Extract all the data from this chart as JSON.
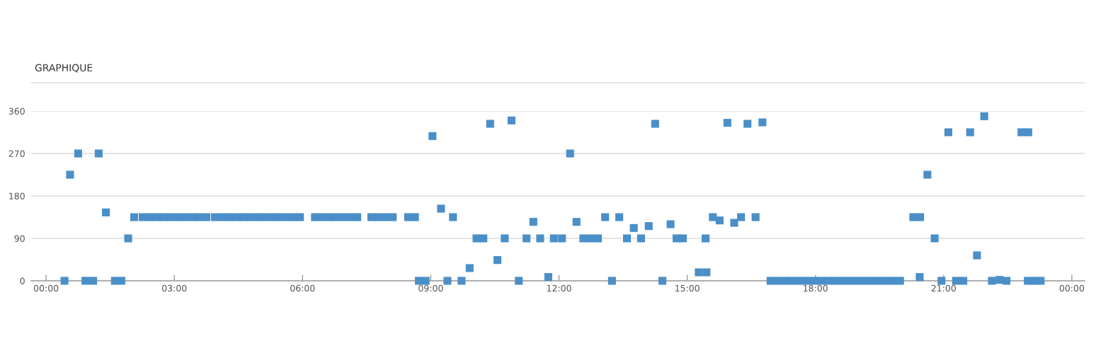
{
  "chart_data": {
    "type": "scatter",
    "title": "GRAPHIQUE",
    "x": [
      0.43,
      0.56,
      0.75,
      0.92,
      1.1,
      1.23,
      1.4,
      1.61,
      1.76,
      1.92,
      2.06,
      2.26,
      2.42,
      2.59,
      2.75,
      2.92,
      3.09,
      3.25,
      3.42,
      3.58,
      3.75,
      3.95,
      4.12,
      4.28,
      4.45,
      4.62,
      4.78,
      4.95,
      5.11,
      5.28,
      5.44,
      5.61,
      5.78,
      5.94,
      6.29,
      6.45,
      6.62,
      6.78,
      6.95,
      7.12,
      7.28,
      7.61,
      7.77,
      7.94,
      8.11,
      8.47,
      8.63,
      8.72,
      8.88,
      9.04,
      9.24,
      9.39,
      9.52,
      9.72,
      9.91,
      10.07,
      10.23,
      10.39,
      10.56,
      10.73,
      10.89,
      11.06,
      11.24,
      11.4,
      11.56,
      11.75,
      11.88,
      12.07,
      12.26,
      12.41,
      12.57,
      12.74,
      12.91,
      13.08,
      13.24,
      13.41,
      13.59,
      13.75,
      13.92,
      14.1,
      14.25,
      14.42,
      14.61,
      14.75,
      14.9,
      15.27,
      15.43,
      15.45,
      15.6,
      15.76,
      15.94,
      16.1,
      16.26,
      16.41,
      16.6,
      16.76,
      16.95,
      17.12,
      17.29,
      17.45,
      17.62,
      17.79,
      17.96,
      18.13,
      18.29,
      18.46,
      18.63,
      18.8,
      18.97,
      19.14,
      19.31,
      19.47,
      19.64,
      19.81,
      19.98,
      20.29,
      20.44,
      20.45,
      20.62,
      20.79,
      20.95,
      21.11,
      21.29,
      21.46,
      21.62,
      21.78,
      21.95,
      22.13,
      22.31,
      22.47,
      22.82,
      22.97,
      22.98,
      23.13,
      23.27
    ],
    "values": [
      0,
      225,
      270,
      0,
      0,
      270,
      145,
      0,
      0,
      90,
      135,
      135,
      135,
      135,
      135,
      135,
      135,
      135,
      135,
      135,
      135,
      135,
      135,
      135,
      135,
      135,
      135,
      135,
      135,
      135,
      135,
      135,
      135,
      135,
      135,
      135,
      135,
      135,
      135,
      135,
      135,
      135,
      135,
      135,
      135,
      135,
      135,
      0,
      0,
      307,
      153,
      0,
      135,
      0,
      27,
      90,
      90,
      333,
      44,
      90,
      340,
      0,
      90,
      125,
      90,
      8,
      90,
      90,
      270,
      125,
      90,
      90,
      90,
      135,
      0,
      135,
      90,
      112,
      90,
      116,
      333,
      0,
      120,
      90,
      90,
      18,
      90,
      18,
      135,
      128,
      335,
      123,
      135,
      333,
      135,
      336,
      0,
      0,
      0,
      0,
      0,
      0,
      0,
      0,
      0,
      0,
      0,
      0,
      0,
      0,
      0,
      0,
      0,
      0,
      0,
      135,
      8,
      135,
      225,
      90,
      0,
      315,
      0,
      0,
      315,
      54,
      349,
      0,
      2,
      0,
      315,
      0,
      315,
      0,
      0
    ],
    "color": "#4a8fc8",
    "marker": "square",
    "xlim": [
      -0.35,
      24.3
    ],
    "ylim": [
      0,
      360
    ],
    "xticks": [
      {
        "value": 0,
        "label": "00:00"
      },
      {
        "value": 3,
        "label": "03:00"
      },
      {
        "value": 6,
        "label": "06:00"
      },
      {
        "value": 9,
        "label": "09:00"
      },
      {
        "value": 12,
        "label": "12:00"
      },
      {
        "value": 15,
        "label": "15:00"
      },
      {
        "value": 18,
        "label": "18:00"
      },
      {
        "value": 21,
        "label": "21:00"
      },
      {
        "value": 24,
        "label": "00:00"
      }
    ],
    "yticks": [
      0,
      90,
      180,
      270,
      360
    ],
    "grid": "y"
  }
}
